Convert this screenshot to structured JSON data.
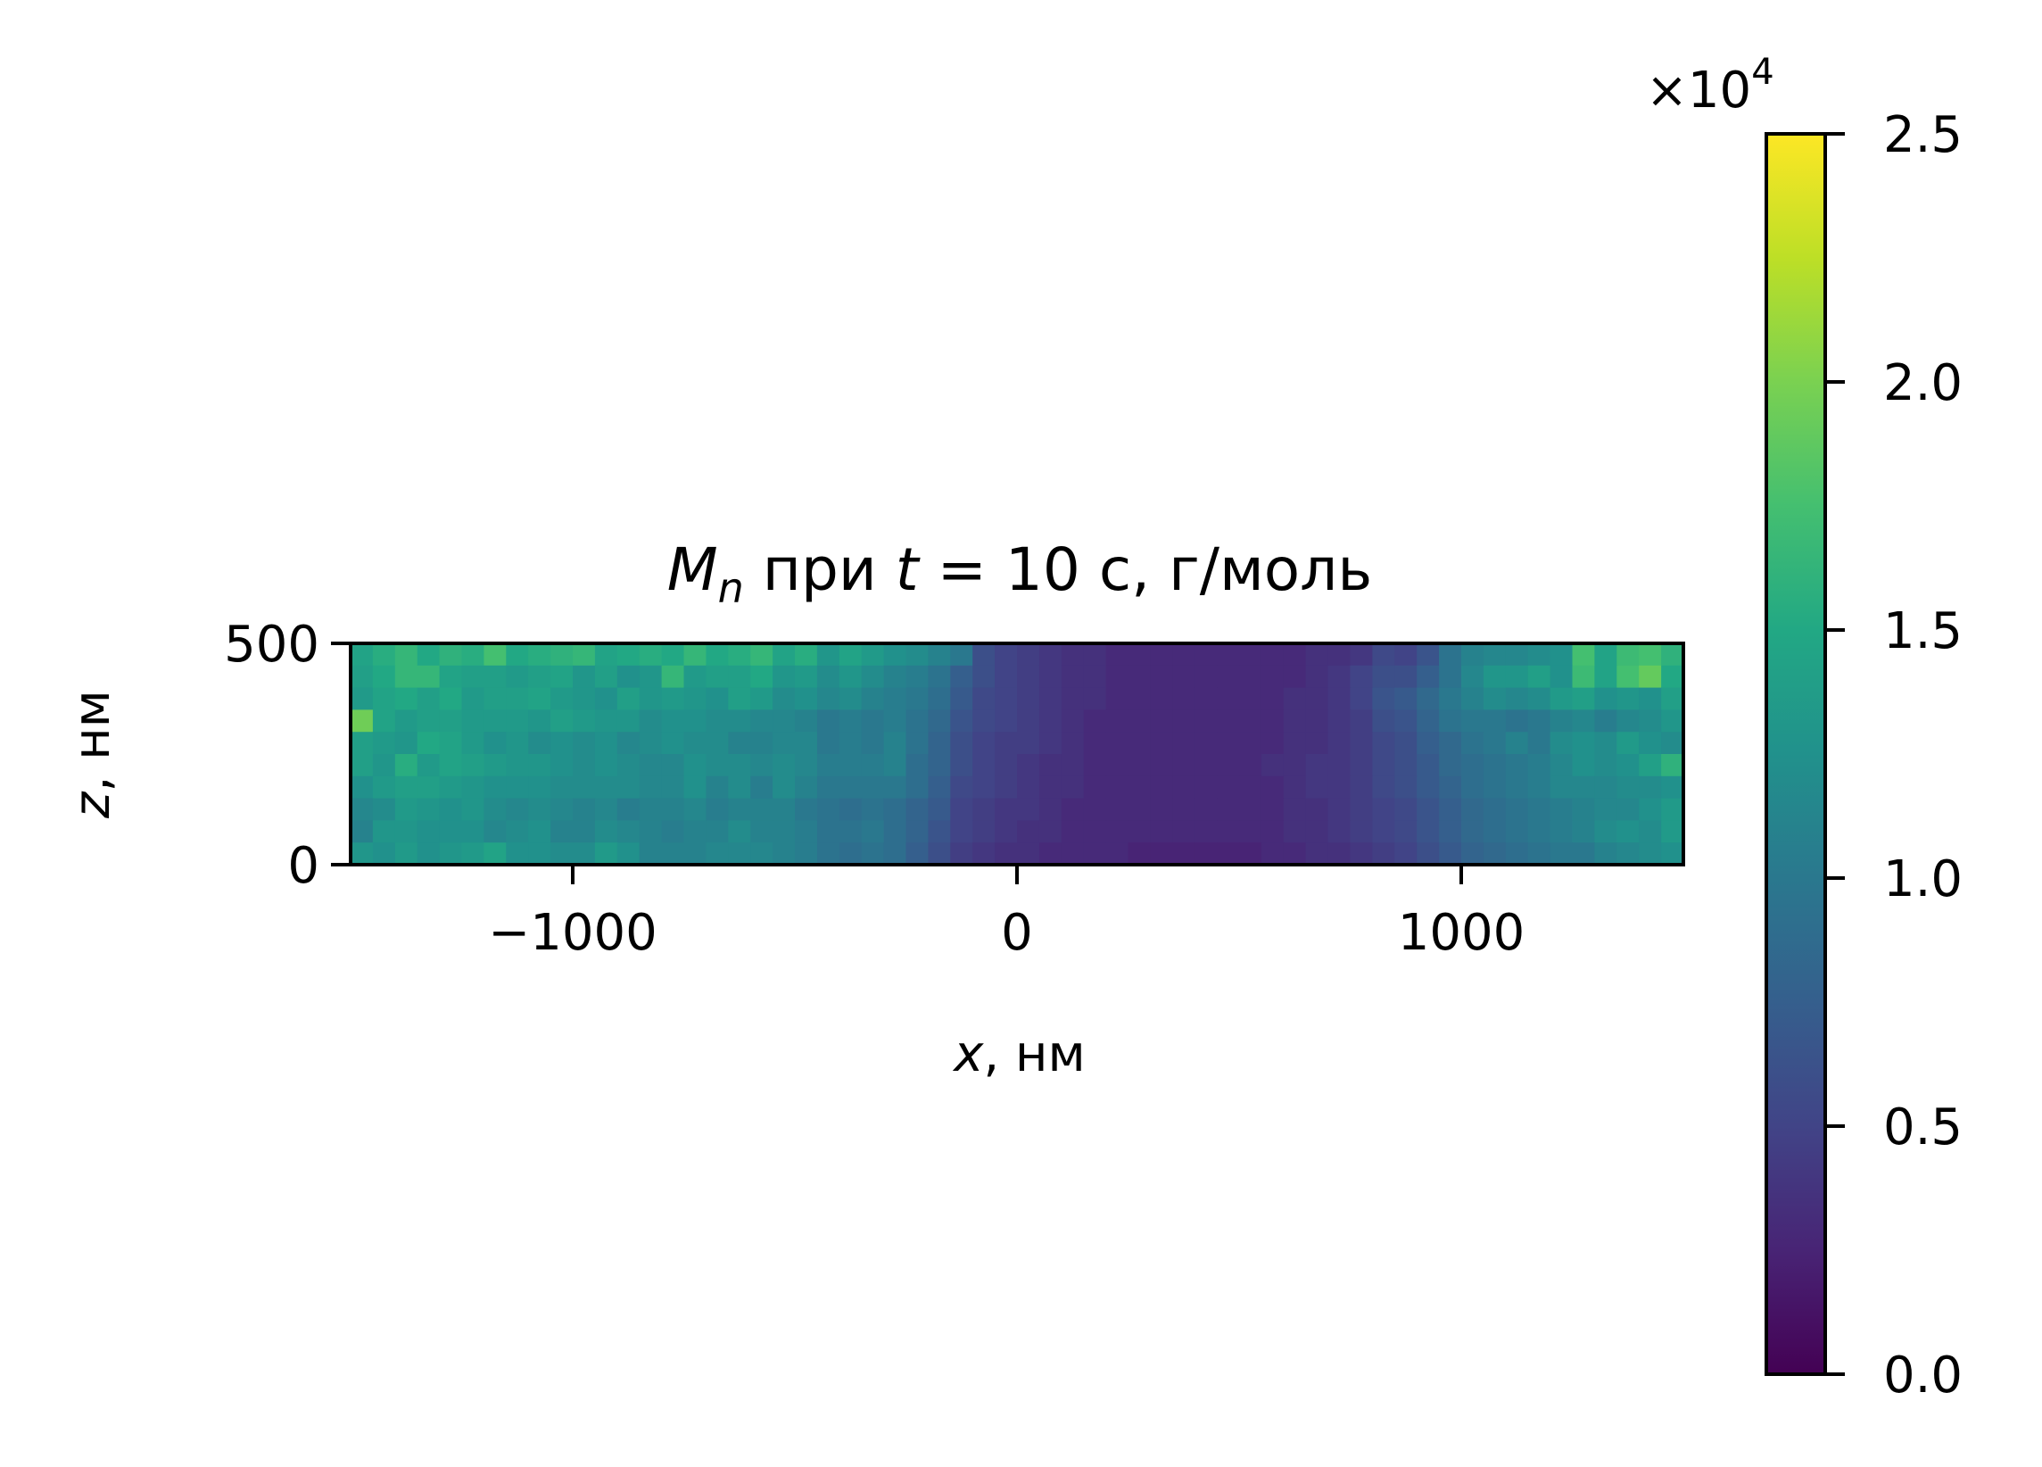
{
  "chart_data": [
    {
      "type": "heatmap",
      "title_parts": {
        "mn": "M",
        "mn_sub": "n",
        "mid": " при ",
        "t": "t",
        "rest": " = 10 с, г/моль"
      },
      "xlabel": {
        "var": "x",
        "unit": ", нм"
      },
      "ylabel": {
        "var": "z",
        "unit": ", нм"
      },
      "xlim": [
        -1500,
        1500
      ],
      "ylim": [
        0,
        500
      ],
      "x_ticks": [
        {
          "value": -1000,
          "label": "−1000"
        },
        {
          "value": 0,
          "label": "0"
        },
        {
          "value": 1000,
          "label": "1000"
        }
      ],
      "y_ticks": [
        {
          "value": 0,
          "label": "0"
        },
        {
          "value": 500,
          "label": "500"
        }
      ],
      "colormap": "viridis",
      "grid": false,
      "colorbar": {
        "offset_text": {
          "base": "×10",
          "exp": "4"
        },
        "range": [
          0,
          25000
        ],
        "ticks": [
          {
            "value": 0,
            "label": "0.0"
          },
          {
            "value": 5000,
            "label": "0.5"
          },
          {
            "value": 10000,
            "label": "1.0"
          },
          {
            "value": 15000,
            "label": "1.5"
          },
          {
            "value": 20000,
            "label": "2.0"
          },
          {
            "value": 25000,
            "label": "2.5"
          }
        ]
      },
      "grid_shape": {
        "cols": 60,
        "rows": 10
      },
      "cell_size_nm": {
        "dx": 50,
        "dz": 50
      },
      "rows_from_top": [
        [
          14500,
          15500,
          16500,
          15000,
          16000,
          15500,
          17500,
          15000,
          15500,
          16000,
          16500,
          14500,
          15000,
          15500,
          15000,
          16500,
          15000,
          15500,
          16500,
          14500,
          15500,
          13000,
          14500,
          13500,
          12500,
          12000,
          11000,
          10000,
          6000,
          5000,
          4500,
          4000,
          3500,
          3500,
          3000,
          3000,
          3000,
          3000,
          3000,
          3000,
          3000,
          3000,
          3000,
          3500,
          3500,
          4000,
          5500,
          5000,
          6500,
          9500,
          11000,
          11500,
          11500,
          12000,
          12500,
          17500,
          14500,
          17000,
          17500,
          16000
        ],
        [
          14000,
          15000,
          16500,
          16500,
          14500,
          14000,
          14000,
          13500,
          14000,
          14500,
          13000,
          14000,
          12500,
          13000,
          16500,
          13500,
          14000,
          14000,
          15000,
          13000,
          13500,
          12000,
          13000,
          12000,
          11000,
          10500,
          9500,
          7500,
          6000,
          5000,
          4500,
          4000,
          3500,
          3500,
          3000,
          3000,
          3000,
          3000,
          3000,
          3000,
          3000,
          3000,
          3000,
          3500,
          4000,
          5000,
          6000,
          6000,
          7500,
          9500,
          11500,
          13000,
          13000,
          14000,
          12500,
          17000,
          14500,
          17500,
          19000,
          15000
        ],
        [
          13500,
          14500,
          15000,
          14000,
          15000,
          13500,
          14000,
          14000,
          14500,
          13500,
          13000,
          12500,
          14000,
          13000,
          13500,
          13000,
          12500,
          14000,
          13500,
          12000,
          12500,
          11500,
          12000,
          11000,
          10500,
          10000,
          9000,
          7000,
          5500,
          5000,
          4500,
          4000,
          3500,
          3500,
          3000,
          3000,
          3000,
          3000,
          3000,
          3000,
          3000,
          3000,
          3500,
          3500,
          4000,
          5000,
          6500,
          7000,
          8500,
          10000,
          11000,
          12000,
          11500,
          12000,
          13500,
          14000,
          12500,
          13000,
          12500,
          14000
        ],
        [
          19500,
          14500,
          13500,
          14000,
          14000,
          13500,
          13500,
          13500,
          13000,
          14000,
          13500,
          13000,
          13000,
          12000,
          12500,
          12500,
          12000,
          12000,
          11500,
          11500,
          11000,
          10000,
          10500,
          10000,
          10500,
          9500,
          8500,
          6500,
          5500,
          5000,
          4500,
          4000,
          3500,
          3000,
          3000,
          3000,
          3000,
          3000,
          3000,
          3000,
          3000,
          3000,
          3500,
          3500,
          4000,
          4500,
          6000,
          6500,
          8000,
          9500,
          10000,
          10000,
          9500,
          10000,
          11000,
          11500,
          10500,
          11500,
          12000,
          13000
        ],
        [
          14000,
          13500,
          13000,
          15000,
          14500,
          13500,
          12500,
          13000,
          12000,
          12500,
          12000,
          12500,
          11500,
          12000,
          12500,
          12000,
          12000,
          11000,
          11000,
          11500,
          11500,
          10000,
          10500,
          10000,
          11000,
          9500,
          8000,
          6000,
          5000,
          4500,
          4500,
          4000,
          3500,
          3000,
          3000,
          3000,
          3000,
          3000,
          3000,
          3000,
          3000,
          3000,
          3500,
          3500,
          4000,
          4500,
          5500,
          6000,
          7500,
          8500,
          9500,
          10000,
          11000,
          10000,
          12000,
          12500,
          12000,
          13500,
          12500,
          12000
        ],
        [
          14000,
          13000,
          15500,
          13500,
          14500,
          14000,
          13500,
          13000,
          13000,
          12500,
          12000,
          12500,
          12000,
          11500,
          11500,
          12500,
          12000,
          12000,
          11500,
          12000,
          11500,
          10500,
          10500,
          10500,
          11000,
          9000,
          8000,
          6000,
          5000,
          4500,
          4000,
          3500,
          3500,
          3000,
          3000,
          3000,
          3000,
          3000,
          3000,
          3000,
          3000,
          3500,
          3500,
          4000,
          4000,
          4500,
          5500,
          6000,
          7000,
          8500,
          9000,
          9500,
          10000,
          10500,
          11500,
          12500,
          12000,
          12500,
          14000,
          16000
        ],
        [
          12500,
          13500,
          14000,
          14000,
          13500,
          13000,
          12500,
          12500,
          12500,
          12000,
          12000,
          12000,
          12000,
          11500,
          11500,
          12500,
          11000,
          12000,
          10500,
          12000,
          11000,
          10000,
          10000,
          10000,
          10000,
          9000,
          7500,
          5500,
          5000,
          4500,
          4000,
          3500,
          3500,
          3000,
          3000,
          3000,
          3000,
          3000,
          3000,
          3000,
          3000,
          3000,
          3500,
          4000,
          4000,
          4500,
          5500,
          6000,
          7000,
          8000,
          9000,
          9500,
          10000,
          10500,
          11500,
          11500,
          11500,
          12000,
          12000,
          12500
        ],
        [
          11500,
          12000,
          13500,
          13000,
          12500,
          13000,
          12000,
          11500,
          12000,
          11500,
          11000,
          11500,
          10500,
          11000,
          11000,
          11500,
          10500,
          11000,
          11000,
          11000,
          10000,
          9500,
          9000,
          9500,
          9000,
          8000,
          7000,
          5000,
          4500,
          4000,
          4000,
          3500,
          3000,
          3000,
          3000,
          3000,
          3000,
          3000,
          3000,
          3000,
          3000,
          3000,
          3500,
          3500,
          4000,
          4500,
          5000,
          5500,
          6500,
          7500,
          8500,
          9000,
          9500,
          10000,
          10500,
          11000,
          11500,
          11500,
          12500,
          13500
        ],
        [
          11000,
          13000,
          13000,
          12500,
          12500,
          12500,
          11500,
          12000,
          12500,
          11000,
          11000,
          12000,
          11500,
          11000,
          10500,
          11000,
          11000,
          12000,
          11000,
          11000,
          10500,
          9500,
          9500,
          10000,
          9000,
          8000,
          6500,
          5000,
          4500,
          4000,
          3500,
          3500,
          3000,
          3000,
          3000,
          3000,
          3000,
          3000,
          3000,
          3000,
          3000,
          3000,
          3500,
          3500,
          4000,
          4500,
          5000,
          5500,
          6500,
          7500,
          8500,
          9000,
          9500,
          10000,
          10500,
          11000,
          12000,
          12500,
          12000,
          13500
        ],
        [
          13000,
          12500,
          13500,
          12500,
          13000,
          13500,
          14500,
          12500,
          12500,
          12000,
          12000,
          13500,
          12500,
          11000,
          11000,
          11000,
          11500,
          11500,
          11500,
          11000,
          10500,
          9500,
          9000,
          9500,
          9000,
          7500,
          6000,
          4500,
          4000,
          3500,
          3500,
          3000,
          3000,
          3000,
          3000,
          2500,
          2500,
          2500,
          2500,
          2500,
          2500,
          3000,
          3000,
          3500,
          3500,
          4000,
          4500,
          5000,
          6000,
          7000,
          8000,
          8500,
          9000,
          9500,
          10000,
          10000,
          11000,
          11500,
          12000,
          12500
        ]
      ]
    }
  ]
}
